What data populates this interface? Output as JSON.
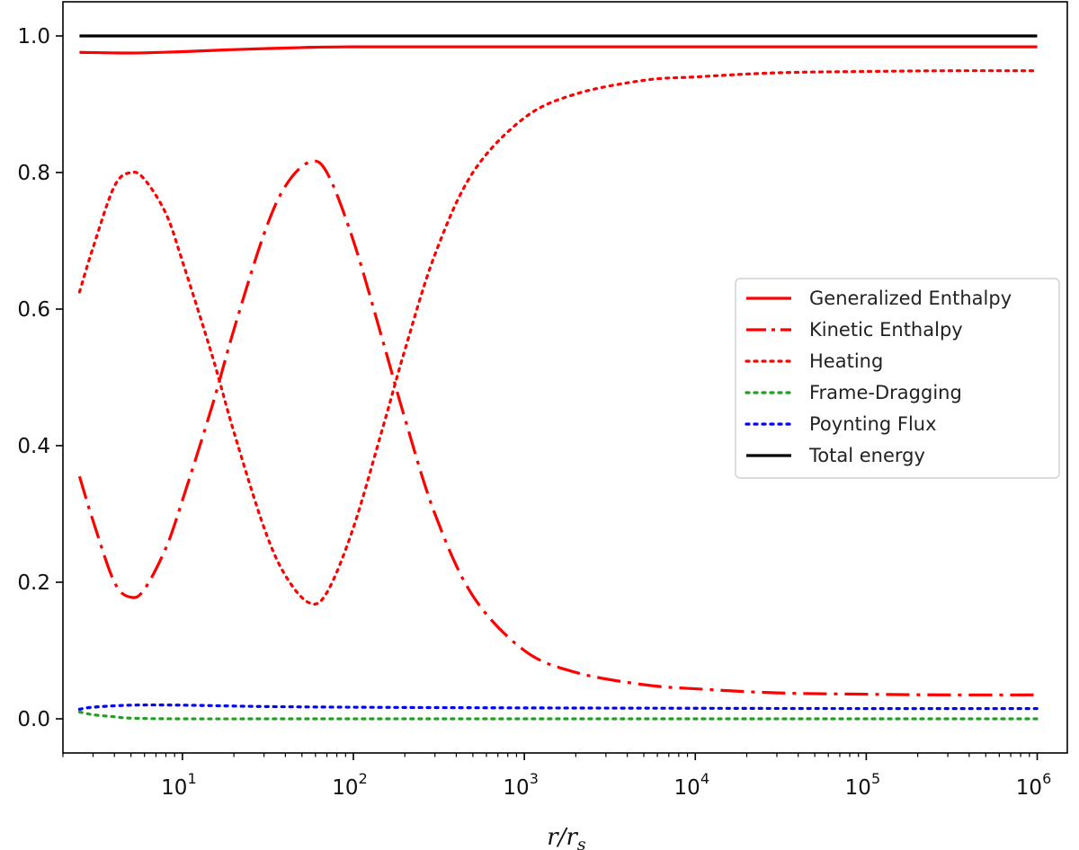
{
  "chart_data": {
    "type": "line",
    "xscale": "log",
    "xlim": [
      2,
      1500000
    ],
    "ylim": [
      -0.05,
      1.05
    ],
    "xlabel": "r/r_s",
    "ylabel": "",
    "grid": false,
    "legend_position": "center-right",
    "y_ticks": [
      "0.0",
      "0.2",
      "0.4",
      "0.6",
      "0.8",
      "1.0"
    ],
    "x_ticks": [
      {
        "value": 10,
        "base": "10",
        "exp": "1"
      },
      {
        "value": 100,
        "base": "10",
        "exp": "2"
      },
      {
        "value": 1000,
        "base": "10",
        "exp": "3"
      },
      {
        "value": 10000,
        "base": "10",
        "exp": "4"
      },
      {
        "value": 100000,
        "base": "10",
        "exp": "5"
      },
      {
        "value": 1000000,
        "base": "10",
        "exp": "6"
      }
    ],
    "xlabel_parts": {
      "main": "r/r",
      "sub": "s"
    },
    "series": [
      {
        "name": "Generalized Enthalpy",
        "color": "#ff0000",
        "style": "solid",
        "x": [
          2.5,
          5,
          10,
          20,
          50,
          100,
          1000,
          10000,
          100000,
          1000000
        ],
        "y": [
          0.976,
          0.975,
          0.977,
          0.98,
          0.983,
          0.984,
          0.984,
          0.984,
          0.984,
          0.984
        ]
      },
      {
        "name": "Kinetic Enthalpy",
        "color": "#ff0000",
        "style": "dashdot",
        "x": [
          2.5,
          3,
          4,
          5,
          6,
          8,
          10,
          15,
          20,
          30,
          40,
          55,
          70,
          100,
          150,
          200,
          300,
          500,
          1000,
          2000,
          5000,
          10000,
          30000,
          100000,
          300000,
          1000000
        ],
        "y": [
          0.355,
          0.29,
          0.2,
          0.178,
          0.19,
          0.25,
          0.32,
          0.46,
          0.57,
          0.71,
          0.78,
          0.815,
          0.8,
          0.7,
          0.55,
          0.44,
          0.3,
          0.18,
          0.1,
          0.068,
          0.05,
          0.044,
          0.038,
          0.036,
          0.035,
          0.035
        ]
      },
      {
        "name": "Heating",
        "color": "#ff0000",
        "style": "dotted",
        "x": [
          2.5,
          3,
          4,
          5,
          6,
          8,
          10,
          15,
          20,
          30,
          40,
          55,
          70,
          100,
          150,
          200,
          300,
          500,
          1000,
          2000,
          5000,
          10000,
          30000,
          100000,
          300000,
          1000000
        ],
        "y": [
          0.625,
          0.69,
          0.78,
          0.8,
          0.79,
          0.74,
          0.67,
          0.53,
          0.42,
          0.28,
          0.21,
          0.17,
          0.185,
          0.28,
          0.43,
          0.54,
          0.68,
          0.8,
          0.88,
          0.915,
          0.935,
          0.94,
          0.946,
          0.948,
          0.949,
          0.949
        ]
      },
      {
        "name": "Frame-Dragging",
        "color": "#22a022",
        "style": "dotted",
        "x": [
          2.5,
          3,
          4,
          5,
          10,
          100,
          1000000
        ],
        "y": [
          0.01,
          0.006,
          0.003,
          0.001,
          0.0,
          0.0,
          0.0
        ]
      },
      {
        "name": "Poynting Flux",
        "color": "#0000ff",
        "style": "dotted",
        "x": [
          2.5,
          3,
          5,
          10,
          30,
          100,
          1000,
          100000,
          1000000
        ],
        "y": [
          0.014,
          0.017,
          0.02,
          0.02,
          0.018,
          0.017,
          0.016,
          0.015,
          0.015
        ]
      },
      {
        "name": "Total energy",
        "color": "#000000",
        "style": "solid",
        "x": [
          2.5,
          1000000
        ],
        "y": [
          1.0,
          1.0
        ]
      }
    ]
  }
}
